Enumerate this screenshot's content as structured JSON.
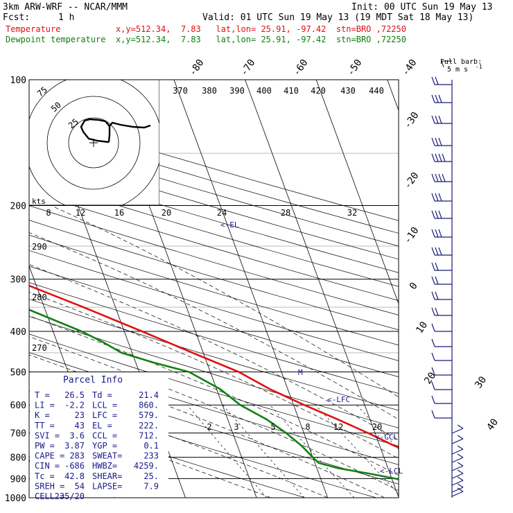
{
  "header": {
    "model": "3km ARW-WRF -- NCAR/MMM",
    "init": "Init: 00 UTC Sun 19 May 13",
    "fcst_label": "Fcst:",
    "fcst_value": "1 h",
    "valid": "Valid: 01 UTC Sun 19 May 13 (19 MDT Sat 18 May 13)",
    "temp_line": "Temperature           x,y=512.34,  7.83   lat,lon= 25.91, -97.42  stn=BRO ,72250",
    "dewp_line": "Dewpoint temperature  x,y=512.34,  7.83   lat,lon= 25.91, -97.42  stn=BRO ,72250"
  },
  "colors": {
    "temperature": "#e01010",
    "dewpoint": "#108010",
    "barbs": "#1a1a7a",
    "info": "#1a1a8a"
  },
  "barb_legend": {
    "title": "Full barb:",
    "value": "5 m s",
    "sup": "-1"
  },
  "pressure_levels": [
    "100",
    "200",
    "300",
    "400",
    "500",
    "600",
    "700",
    "800",
    "900",
    "1000"
  ],
  "isotherm_labels": [
    "-80",
    "-70",
    "-60",
    "-50",
    "-40",
    "-30",
    "-20",
    "-10",
    "0",
    "10",
    "20",
    "30",
    "40"
  ],
  "theta_labels": [
    "370",
    "380",
    "390",
    "400",
    "410",
    "420",
    "430",
    "440"
  ],
  "theta_e_labels": [
    "8",
    "12",
    "16",
    "20",
    "24",
    "28",
    "32"
  ],
  "theta_low_labels": [
    "290",
    "280",
    "270"
  ],
  "mixing_labels": [
    "2",
    "3",
    "5",
    "8",
    "12",
    "20"
  ],
  "hodograph": {
    "unit": "kts",
    "rings": [
      "25",
      "50",
      "75"
    ]
  },
  "annotations": {
    "el": "<-EL",
    "lfc": "<-LFC",
    "ccl": "<-CCL",
    "lcl": "<-LCL",
    "m": "M"
  },
  "parcel": {
    "title": "Parcel Info",
    "rows": [
      [
        "T   =",
        "26.5",
        "Td =",
        "21.4"
      ],
      [
        "LI  =",
        "-2.2",
        "LCL =",
        "860."
      ],
      [
        "K   =",
        "23",
        "LFC =",
        "579."
      ],
      [
        "TT  =",
        "43",
        "EL  =",
        "222."
      ],
      [
        "SVI =",
        "3.6",
        "CCL =",
        "712."
      ],
      [
        "PW  =",
        "3.87",
        "YGP =",
        "0.1"
      ],
      [
        "CAPE =",
        "283",
        "SWEAT=",
        "233"
      ],
      [
        "CIN  =",
        "-686",
        "HWBZ=",
        "4259."
      ],
      [
        "Tc  =",
        "42.8",
        "SHEAR=",
        "25."
      ],
      [
        "SREH =",
        "54",
        "LAPSE=",
        "7.9"
      ],
      [
        "CELL =",
        "235/20",
        "",
        ""
      ]
    ]
  },
  "chart_data": {
    "type": "line",
    "title": "",
    "xlabel": "",
    "ylabel": "",
    "y_scale": "log-pressure",
    "ylim_hPa": [
      1000,
      100
    ],
    "series": [
      {
        "name": "Temperature",
        "pressure_hPa": [
          1000,
          975,
          950,
          925,
          900,
          875,
          850,
          825,
          800,
          750,
          700,
          650,
          600,
          550,
          500,
          450,
          400,
          350,
          300,
          250,
          225,
          200,
          175,
          160,
          150,
          125,
          100
        ],
        "temperature_C": [
          25.5,
          24.5,
          25.0,
          24.0,
          22.2,
          20.5,
          19.0,
          17.5,
          15.5,
          12.0,
          9.0,
          5.5,
          1.5,
          -2.5,
          -6.0,
          -11.5,
          -17.5,
          -24.5,
          -33.0,
          -43.5,
          -49.5,
          -55.5,
          -61.5,
          -65.0,
          -67.5,
          -67.0,
          -66.0
        ]
      },
      {
        "name": "Dewpoint temperature",
        "pressure_hPa": [
          1000,
          975,
          950,
          925,
          900,
          875,
          850,
          825,
          800,
          750,
          700,
          650,
          600,
          550,
          500,
          475,
          450,
          425,
          400,
          350,
          300,
          250,
          225,
          200,
          175,
          150,
          125,
          100
        ],
        "dewpoint_C": [
          21.4,
          20.0,
          18.5,
          14.0,
          10.5,
          7.0,
          3.0,
          0.5,
          0.0,
          -1.0,
          -2.5,
          -4.5,
          -7.5,
          -9.5,
          -13.0,
          -17.5,
          -21.5,
          -23.5,
          -26.0,
          -33.0,
          -42.5,
          -53.0,
          -60.0,
          -70.0,
          -80.0,
          -89.0,
          -94.0,
          -99.0
        ]
      }
    ]
  }
}
